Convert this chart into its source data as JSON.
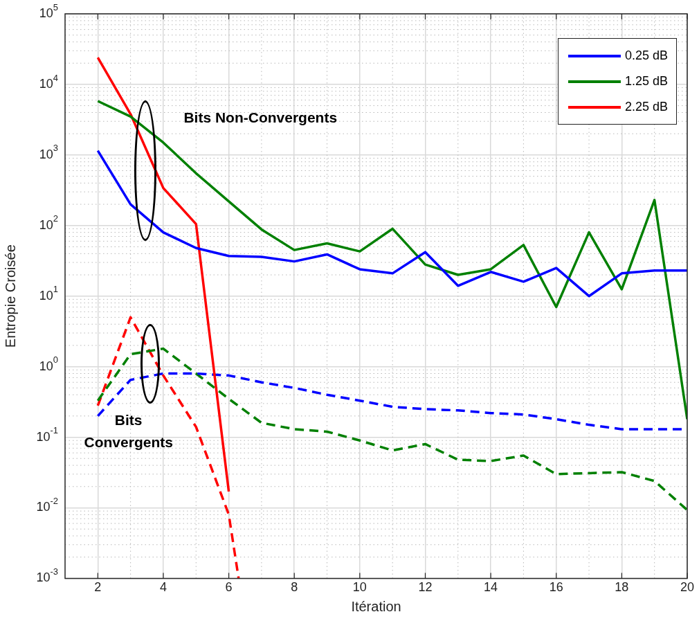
{
  "chart_data": {
    "type": "line",
    "xlabel": "Itération",
    "ylabel": "Entropie Croisée",
    "log": "y",
    "grid": true,
    "legend": "top right",
    "marker": "none",
    "x": [
      2,
      3,
      4,
      5,
      6,
      7,
      8,
      9,
      10,
      11,
      12,
      13,
      14,
      15,
      16,
      17,
      18,
      19,
      20
    ],
    "xlim": [
      1,
      20
    ],
    "xticks": [
      2,
      4,
      6,
      8,
      10,
      12,
      14,
      16,
      18,
      20
    ],
    "ylim": [
      0.001,
      100000
    ],
    "yticks": [
      {
        "value": 0.001,
        "label": "10$^{-3}$"
      },
      {
        "value": 0.01,
        "label": "10$^{-2}$"
      },
      {
        "value": 0.1,
        "label": "10$^{-1}$"
      },
      {
        "value": 1,
        "label": "10$^{0}$"
      },
      {
        "value": 10,
        "label": "10$^{1}$"
      },
      {
        "value": 100,
        "label": "10$^{2}$"
      },
      {
        "value": 1000,
        "label": "10$^{3}$"
      },
      {
        "value": 10000,
        "label": "10$^{4}$"
      },
      {
        "value": 100000,
        "label": "10$^{5}$"
      }
    ],
    "series": [
      {
        "name": "0.25 dB",
        "color": "#0000ff",
        "line_style": "solid",
        "values": [
          1150,
          200,
          80,
          48,
          37,
          36,
          31,
          39,
          24,
          21,
          42,
          14,
          22,
          16,
          25,
          10,
          21,
          23,
          23
        ]
      },
      {
        "name": "1.25 dB",
        "color": "#008000",
        "line_style": "solid",
        "values": [
          5800,
          3500,
          1500,
          550,
          220,
          88,
          45,
          56,
          43,
          90,
          28,
          20,
          24,
          53,
          7,
          80,
          12.5,
          230,
          0.18
        ]
      },
      {
        "name": "2.25 dB",
        "color": "#ff0000",
        "line_style": "solid",
        "x": [
          2,
          3,
          4,
          5,
          6
        ],
        "values": [
          24000,
          3800,
          340,
          105,
          0.017
        ]
      },
      {
        "color": "#0000ff",
        "line_style": "dashed",
        "values": [
          0.2,
          0.65,
          0.8,
          0.8,
          0.75,
          0.6,
          0.5,
          0.4,
          0.33,
          0.27,
          0.25,
          0.24,
          0.22,
          0.21,
          0.18,
          0.15,
          0.13,
          0.13,
          0.13
        ]
      },
      {
        "color": "#008000",
        "line_style": "dashed",
        "values": [
          0.33,
          1.5,
          1.8,
          0.8,
          0.35,
          0.16,
          0.13,
          0.12,
          0.09,
          0.065,
          0.08,
          0.048,
          0.046,
          0.055,
          0.03,
          0.031,
          0.032,
          0.024,
          0.0093
        ]
      },
      {
        "color": "#ff0000",
        "line_style": "dashed",
        "x": [
          2,
          3,
          4,
          5,
          6,
          6.3
        ],
        "values": [
          0.28,
          5,
          0.75,
          0.14,
          0.008,
          0.001
        ]
      }
    ],
    "annotations": [
      "Bits Non-Convergents",
      "Bits\nConvergents"
    ]
  }
}
